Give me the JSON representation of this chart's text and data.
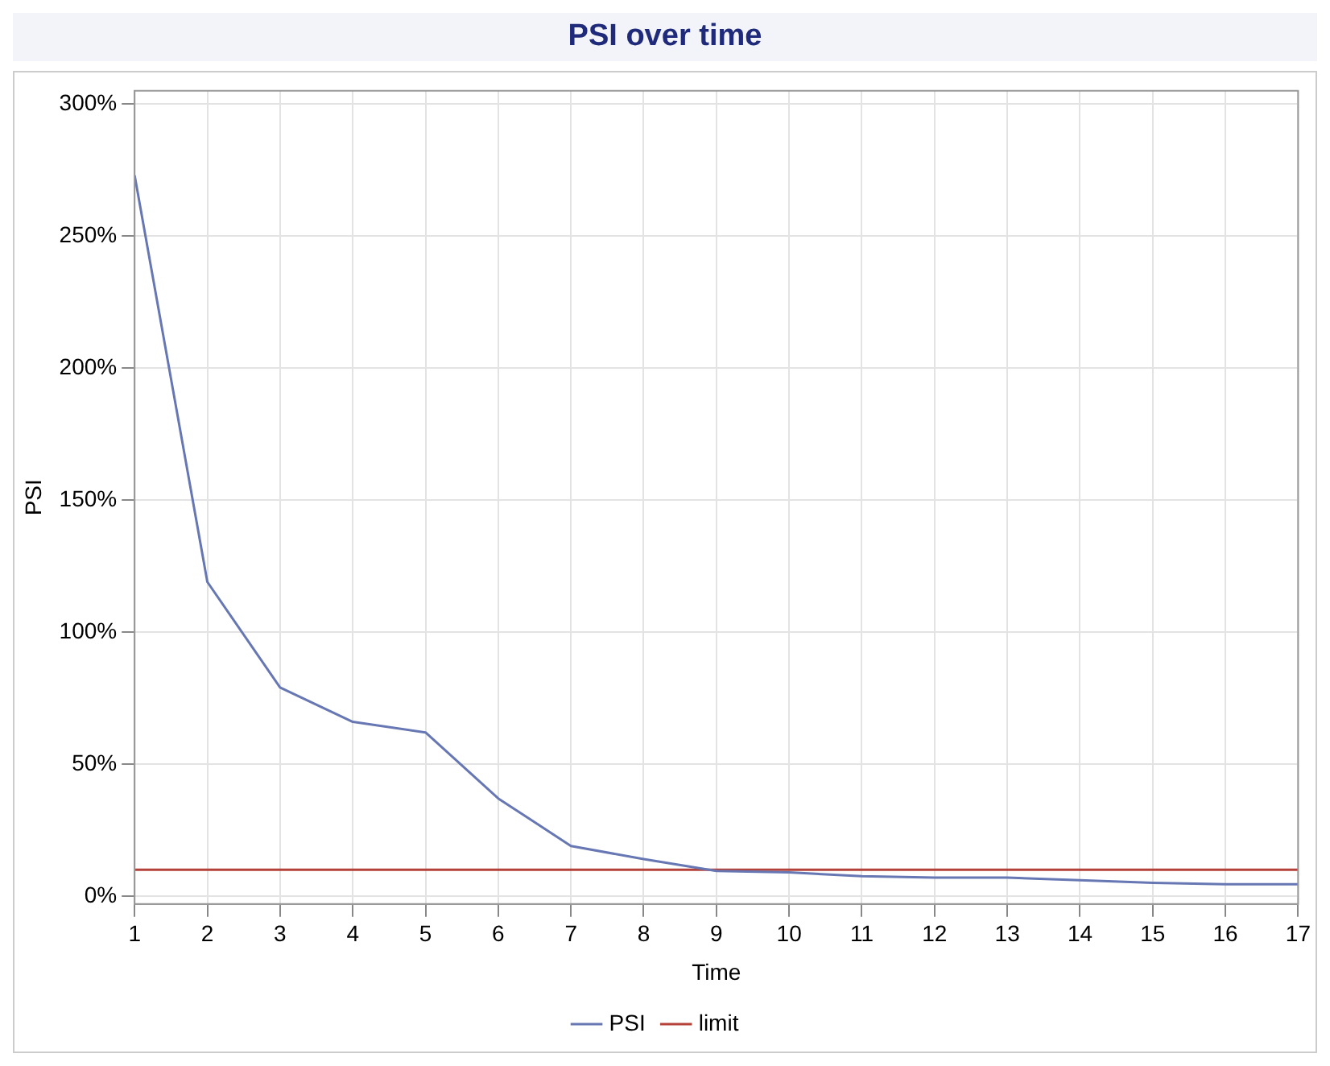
{
  "chart_data": {
    "type": "line",
    "title": "PSI over time",
    "xlabel": "Time",
    "ylabel": "PSI",
    "x": [
      1,
      2,
      3,
      4,
      5,
      6,
      7,
      8,
      9,
      10,
      11,
      12,
      13,
      14,
      15,
      16,
      17
    ],
    "xlim": [
      1,
      17
    ],
    "xticks": [
      1,
      2,
      3,
      4,
      5,
      6,
      7,
      8,
      9,
      10,
      11,
      12,
      13,
      14,
      15,
      16,
      17
    ],
    "series": [
      {
        "name": "PSI",
        "color": "#6677b3",
        "values": [
          273,
          119,
          79,
          66,
          62,
          37,
          19,
          14,
          9.5,
          9,
          7.5,
          7,
          7,
          6,
          5,
          4.5,
          4.5
        ]
      },
      {
        "name": "limit",
        "color": "#b5423a",
        "values": [
          10,
          10,
          10,
          10,
          10,
          10,
          10,
          10,
          10,
          10,
          10,
          10,
          10,
          10,
          10,
          10,
          10
        ]
      }
    ],
    "ylim": [
      -3,
      305
    ],
    "yticks": [
      {
        "value": 0,
        "label": "0%"
      },
      {
        "value": 50,
        "label": "50%"
      },
      {
        "value": 100,
        "label": "100%"
      },
      {
        "value": 150,
        "label": "150%"
      },
      {
        "value": 200,
        "label": "200%"
      },
      {
        "value": 250,
        "label": "250%"
      },
      {
        "value": 300,
        "label": "300%"
      }
    ],
    "grid": true,
    "legend": "bottom",
    "marker": "none",
    "line_style": "solid"
  }
}
